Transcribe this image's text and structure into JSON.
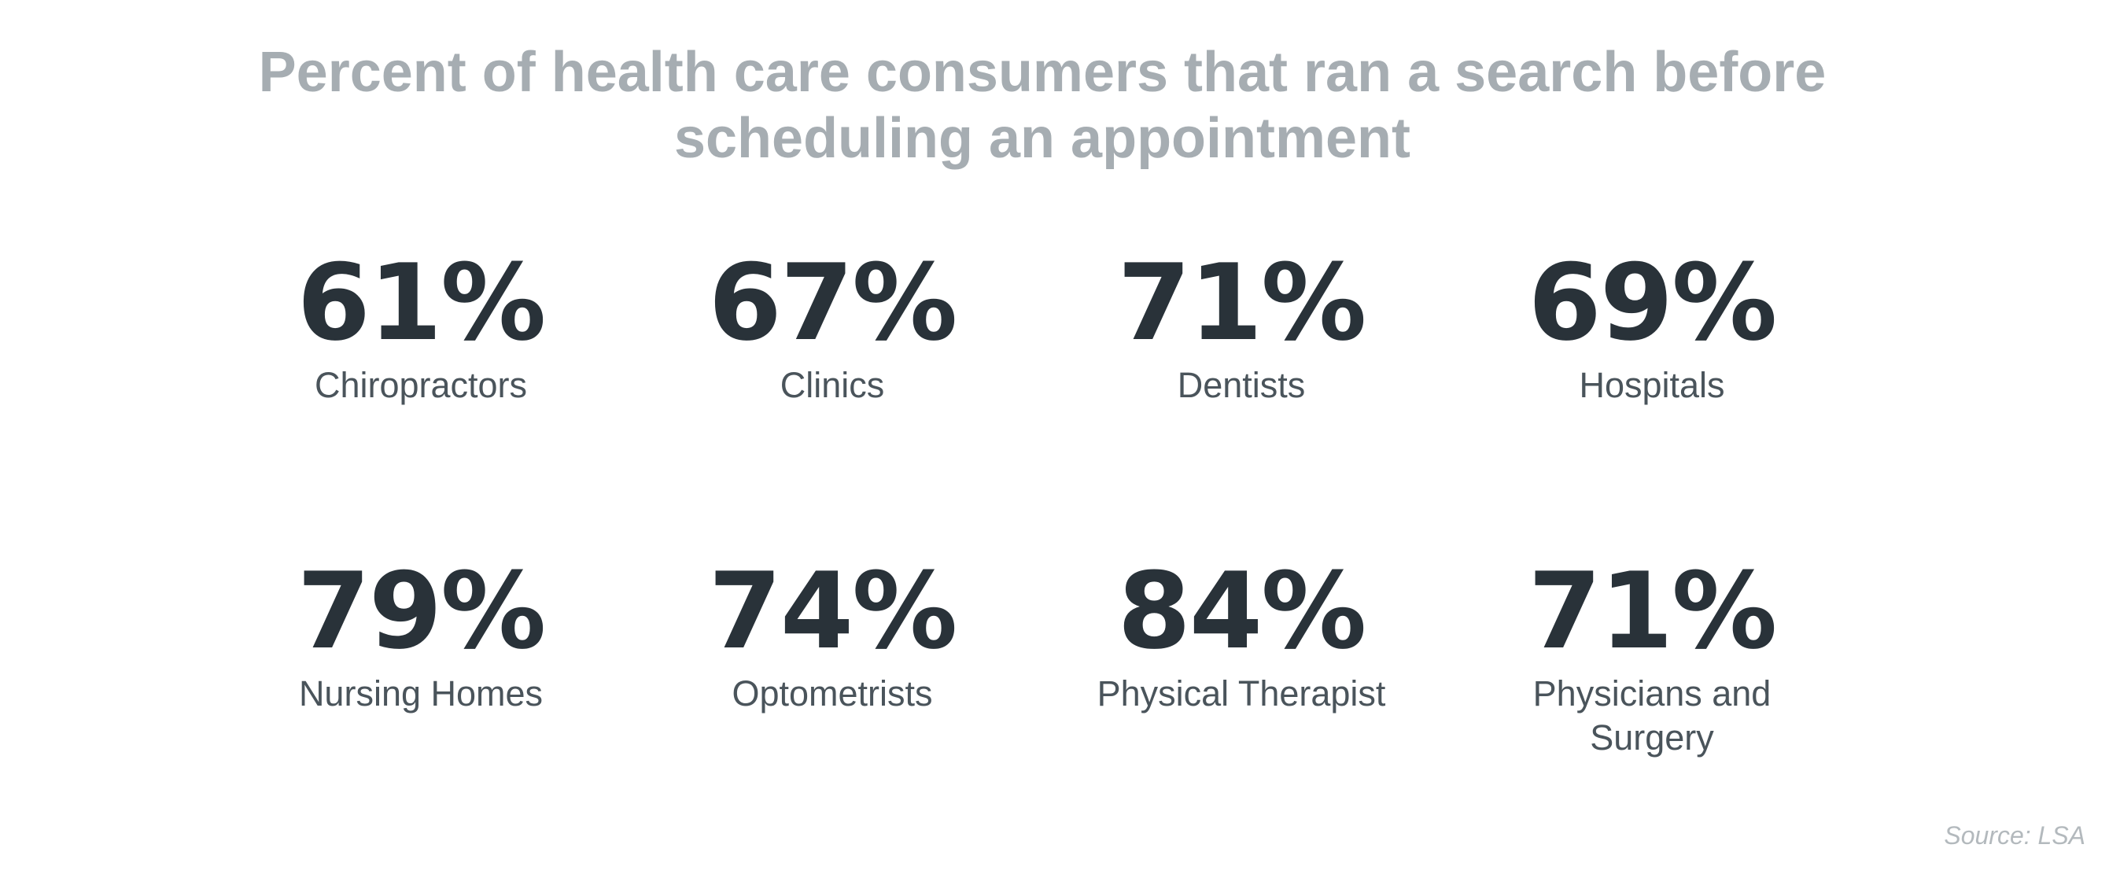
{
  "chart_data": {
    "type": "table",
    "title": "Percent of health care consumers that ran a search before scheduling an appointment",
    "categories": [
      "Chiropractors",
      "Clinics",
      "Dentists",
      "Hospitals",
      "Nursing Homes",
      "Optometrists",
      "Physical Therapist",
      "Physicians and Surgery"
    ],
    "values": [
      61,
      67,
      71,
      69,
      79,
      74,
      84,
      71
    ],
    "unit": "%",
    "layout": "4x2 grid",
    "source": "Source: LSA"
  },
  "colors": {
    "title": "#a6adb2",
    "value": "#293239",
    "label": "#4a545b",
    "source": "#b3b9bd"
  }
}
